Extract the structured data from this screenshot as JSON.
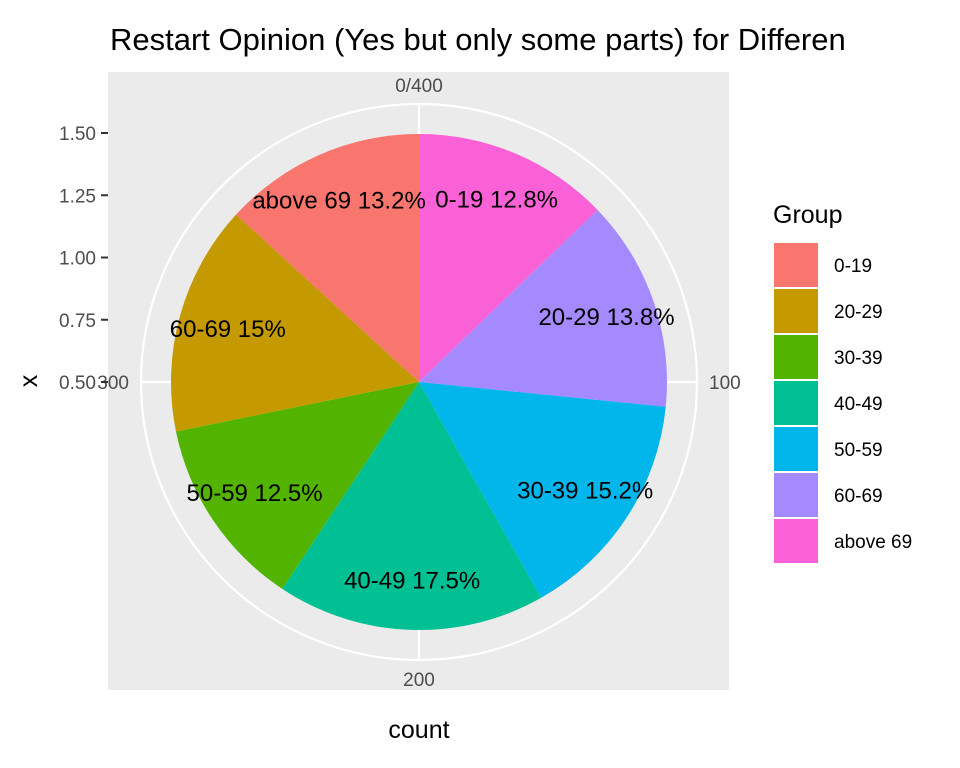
{
  "chart_data": {
    "type": "pie",
    "title": "Restart Opinion (Yes but only some parts) for Differen",
    "xlabel": "count",
    "ylabel": "x",
    "y_ticks": [
      "0.50",
      "0.75",
      "1.00",
      "1.25",
      "1.50"
    ],
    "angular_ticks": [
      "0/400",
      "100",
      "200",
      "300"
    ],
    "legend": {
      "title": "Group",
      "position": "right",
      "items": [
        {
          "label": "0-19",
          "color": "#F8766D"
        },
        {
          "label": "20-29",
          "color": "#C49A00"
        },
        {
          "label": "30-39",
          "color": "#53B400"
        },
        {
          "label": "40-49",
          "color": "#00C094"
        },
        {
          "label": "50-59",
          "color": "#00B6EB"
        },
        {
          "label": "60-69",
          "color": "#A58AFF"
        },
        {
          "label": "above 69",
          "color": "#FB61D7"
        }
      ]
    },
    "slices": [
      {
        "label": "0-19 12.8%",
        "value": 12.8,
        "color": "#FB61D7"
      },
      {
        "label": "20-29 13.8%",
        "value": 13.8,
        "color": "#A58AFF"
      },
      {
        "label": "30-39 15.2%",
        "value": 15.2,
        "color": "#00B6EB"
      },
      {
        "label": "40-49 17.5%",
        "value": 17.5,
        "color": "#00C094"
      },
      {
        "label": "50-59 12.5%",
        "value": 12.5,
        "color": "#53B400"
      },
      {
        "label": "60-69 15%",
        "value": 15.0,
        "color": "#C49A00"
      },
      {
        "label": "above 69 13.2%",
        "value": 13.2,
        "color": "#F8766D"
      }
    ],
    "panel_background": "#EBEBEB",
    "grid": true
  }
}
